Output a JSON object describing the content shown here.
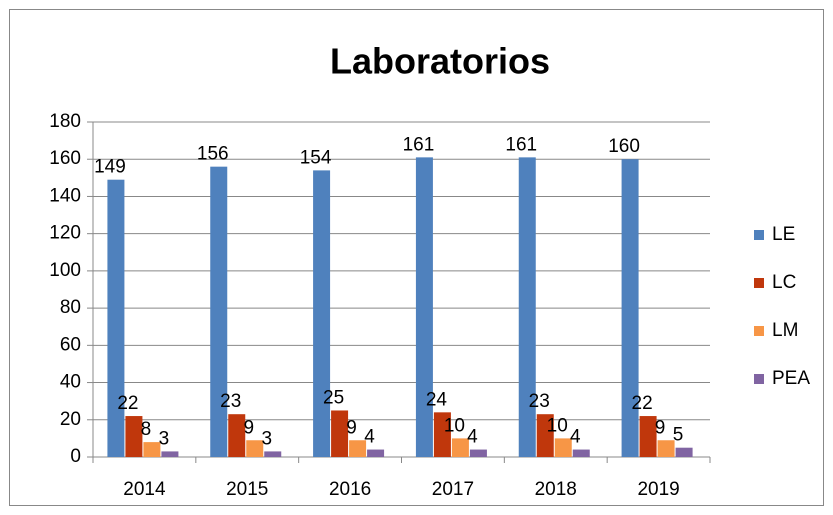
{
  "chart_data": {
    "type": "bar",
    "title": "Laboratorios",
    "categories": [
      "2014",
      "2015",
      "2016",
      "2017",
      "2018",
      "2019"
    ],
    "series": [
      {
        "name": "LE",
        "color": "#4f81bd",
        "values": [
          149,
          156,
          154,
          161,
          161,
          160
        ]
      },
      {
        "name": "LC",
        "color": "#c0370c",
        "values": [
          22,
          23,
          25,
          24,
          23,
          22
        ]
      },
      {
        "name": "LM",
        "color": "#f79646",
        "values": [
          8,
          9,
          9,
          10,
          10,
          9
        ]
      },
      {
        "name": "PEA",
        "color": "#8064a2",
        "values": [
          3,
          3,
          4,
          4,
          4,
          5
        ]
      }
    ],
    "ylim": [
      0,
      180
    ],
    "yticks": [
      0,
      20,
      40,
      60,
      80,
      100,
      120,
      140,
      160,
      180
    ],
    "grid": true,
    "legend": "right"
  }
}
